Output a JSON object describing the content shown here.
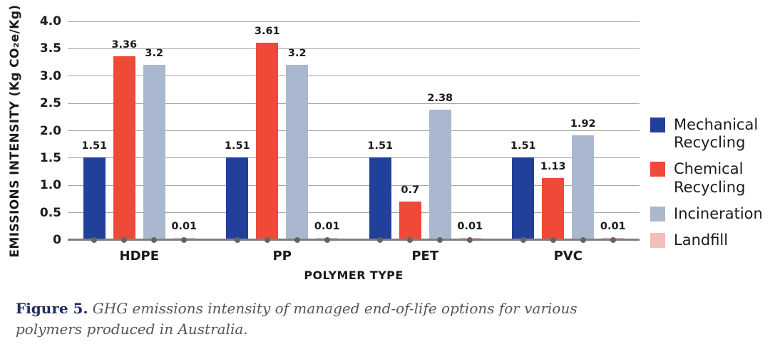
{
  "chart_data": {
    "type": "bar",
    "title": "",
    "xlabel": "POLYMER TYPE",
    "ylabel": "EMISSIONS INTENSITY (Kg CO₂e/Kg)",
    "ylim": [
      0,
      4
    ],
    "grid": "horizontal",
    "legend_position": "right",
    "ytick_values": [
      0,
      0.5,
      1.0,
      1.5,
      2.0,
      2.5,
      3.0,
      3.5,
      4.0
    ],
    "ytick_labels": [
      "0",
      "0.5",
      "1.0",
      "1.5",
      "2.0",
      "2.5",
      "3.0",
      "3.5",
      "4.0"
    ],
    "categories": [
      "HDPE",
      "PP",
      "PET",
      "PVC"
    ],
    "series": [
      {
        "name": "Mechanical Recycling",
        "color": "#21409A",
        "values": [
          1.51,
          1.51,
          1.51,
          1.51
        ]
      },
      {
        "name": "Chemical Recycling",
        "color": "#EF4938",
        "values": [
          3.36,
          3.61,
          0.7,
          1.13
        ]
      },
      {
        "name": "Incineration",
        "color": "#A9B8CF",
        "values": [
          3.2,
          3.2,
          2.38,
          1.92
        ]
      },
      {
        "name": "Landfill",
        "color": "#F0BFB8",
        "values": [
          0.01,
          0.01,
          0.01,
          0.01
        ]
      }
    ]
  },
  "styles": {
    "grid_color": "#A6A6A6",
    "baseline_color": "#7F7F7F",
    "marker_color": "#646464",
    "text_color": "#1A1A1A",
    "caption_prefix_color": "#1F2C5C",
    "caption_text_color": "#54565A"
  },
  "caption": {
    "prefix": "Figure 5.",
    "text": "GHG emissions intensity of managed end-of-life options for various polymers produced in Australia."
  }
}
